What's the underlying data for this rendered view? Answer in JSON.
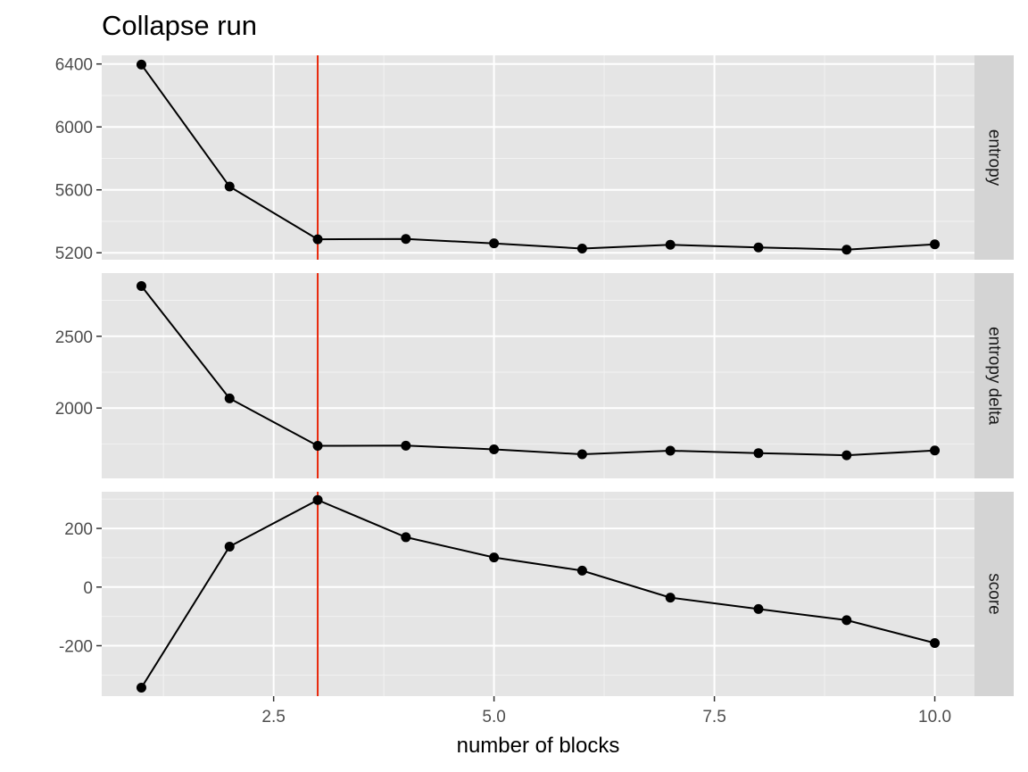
{
  "chart_data": {
    "type": "line",
    "title": "Collapse run",
    "xlabel": "number of blocks",
    "ylabel": "",
    "x": [
      1,
      2,
      3,
      4,
      5,
      6,
      7,
      8,
      9,
      10
    ],
    "xlim": [
      0.55,
      10.45
    ],
    "x_ticks": [
      2.5,
      5.0,
      7.5,
      10.0
    ],
    "x_tick_labels": [
      "2.5",
      "5.0",
      "7.5",
      "10.0"
    ],
    "x_minor": [
      1.25,
      3.75,
      6.25,
      8.75
    ],
    "vline": {
      "x": 3,
      "color": "#e8290b"
    },
    "grid": true,
    "legend": "none",
    "background": "#e5e5e5",
    "strip_background": "#d4d4d4",
    "line_color": "#000000",
    "panels": [
      {
        "label": "entropy",
        "ylim": [
          5156,
          6455
        ],
        "y_ticks": [
          5200,
          5600,
          6000,
          6400
        ],
        "y_tick_labels": [
          "5200",
          "5600",
          "6000",
          "6400"
        ],
        "y_minor": [
          5400,
          5800,
          6200
        ],
        "values": [
          6396,
          5621,
          5286,
          5288,
          5260,
          5227,
          5251,
          5234,
          5220,
          5254
        ]
      },
      {
        "label": "entropy delta",
        "ylim": [
          1510,
          2940
        ],
        "y_ticks": [
          2000,
          2500
        ],
        "y_tick_labels": [
          "2000",
          "2500"
        ],
        "y_minor": [
          1750,
          2250,
          2750
        ],
        "values": [
          2850,
          2067,
          1737,
          1738,
          1712,
          1678,
          1703,
          1686,
          1671,
          1704
        ]
      },
      {
        "label": "score",
        "ylim": [
          -372,
          325
        ],
        "y_ticks": [
          -200,
          0,
          200
        ],
        "y_tick_labels": [
          "-200",
          "0",
          "200"
        ],
        "y_minor": [
          -300,
          -100,
          100,
          300
        ],
        "values": [
          -343,
          138,
          297,
          170,
          101,
          56,
          -36,
          -75,
          -113,
          -191
        ]
      }
    ]
  }
}
